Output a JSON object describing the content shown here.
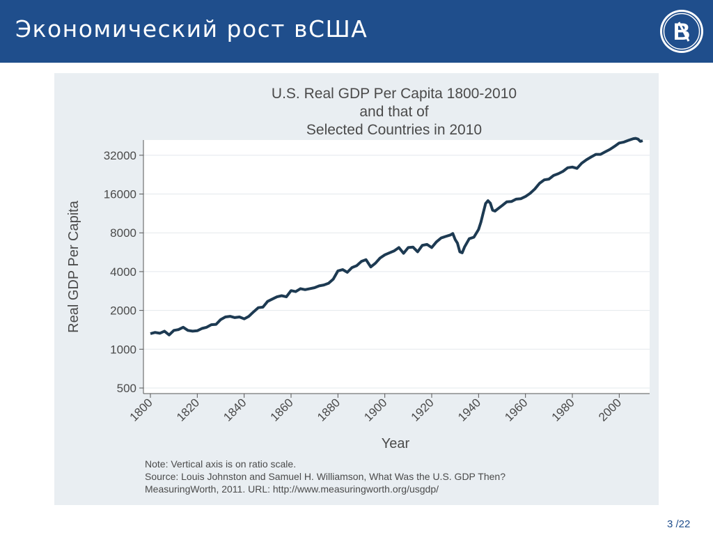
{
  "slide": {
    "title": "Экономический рост вСША",
    "page_number": "3 /22"
  },
  "logo": {
    "icon": "hse-logo-icon"
  },
  "colors": {
    "header_bg": "#1f4e8c",
    "figure_bg": "#e9eef2",
    "line": "#1d3a52"
  },
  "chart_data": {
    "type": "line",
    "title": [
      "U.S. Real GDP Per Capita 1800-2010",
      "and that of",
      "Selected Countries in 2010"
    ],
    "xlabel": "Year",
    "ylabel": "Real GDP Per Capita",
    "y_scale": "log",
    "xlim": [
      1800,
      2010
    ],
    "ylim": [
      500,
      42000
    ],
    "xticks": [
      1800,
      1820,
      1840,
      1860,
      1880,
      1900,
      1920,
      1940,
      1960,
      1980,
      2000
    ],
    "yticks": [
      500,
      1000,
      2000,
      4000,
      8000,
      16000,
      32000
    ],
    "grid": true,
    "series": [
      {
        "x": [
          1800,
          1802,
          1804,
          1806,
          1808,
          1810,
          1812,
          1814,
          1816,
          1818,
          1820,
          1822,
          1824,
          1826,
          1828,
          1830,
          1832,
          1834,
          1836,
          1838,
          1840,
          1842,
          1844,
          1846,
          1848,
          1850,
          1852,
          1854,
          1856,
          1858,
          1860,
          1862,
          1864,
          1866,
          1868,
          1870,
          1872,
          1874,
          1876,
          1878,
          1880,
          1882,
          1884,
          1886,
          1888,
          1890,
          1892,
          1894,
          1896,
          1898,
          1900,
          1902,
          1904,
          1906,
          1908,
          1910,
          1912,
          1914,
          1916,
          1918,
          1920,
          1922,
          1924,
          1926,
          1928,
          1929,
          1930,
          1931,
          1932,
          1933,
          1934,
          1936,
          1938,
          1940,
          1941,
          1942,
          1943,
          1944,
          1945,
          1946,
          1947,
          1948,
          1950,
          1952,
          1954,
          1956,
          1958,
          1960,
          1962,
          1964,
          1966,
          1968,
          1970,
          1972,
          1974,
          1976,
          1978,
          1980,
          1982,
          1984,
          1986,
          1988,
          1990,
          1992,
          1994,
          1996,
          1998,
          2000,
          2002,
          2004,
          2006,
          2007,
          2008,
          2009,
          2010
        ],
        "values": [
          1320,
          1350,
          1330,
          1380,
          1290,
          1400,
          1420,
          1480,
          1400,
          1380,
          1390,
          1450,
          1480,
          1550,
          1560,
          1700,
          1780,
          1800,
          1760,
          1780,
          1720,
          1800,
          1950,
          2100,
          2120,
          2350,
          2450,
          2550,
          2600,
          2550,
          2850,
          2800,
          2950,
          2900,
          2950,
          3000,
          3100,
          3150,
          3250,
          3500,
          4050,
          4150,
          3950,
          4300,
          4450,
          4800,
          4950,
          4350,
          4650,
          5100,
          5400,
          5600,
          5800,
          6150,
          5550,
          6150,
          6200,
          5700,
          6400,
          6500,
          6150,
          6800,
          7300,
          7500,
          7700,
          7900,
          7100,
          6650,
          5700,
          5600,
          6200,
          7200,
          7400,
          8500,
          9700,
          11500,
          13500,
          14200,
          13600,
          12000,
          11800,
          12200,
          13000,
          13900,
          14000,
          14600,
          14700,
          15300,
          16200,
          17500,
          19400,
          20600,
          20900,
          22300,
          23000,
          24000,
          25600,
          25900,
          25300,
          27800,
          29500,
          31000,
          32500,
          32500,
          34000,
          35500,
          37500,
          39800,
          40500,
          41800,
          43000,
          43300,
          42700,
          41000,
          41500
        ]
      }
    ],
    "notes": [
      "Note: Vertical axis is on ratio scale.",
      "Source: Louis Johnston and Samuel H. Williamson, What Was the U.S. GDP Then?",
      "MeasuringWorth, 2011. URL: http://www.measuringworth.org/usgdp/"
    ]
  }
}
